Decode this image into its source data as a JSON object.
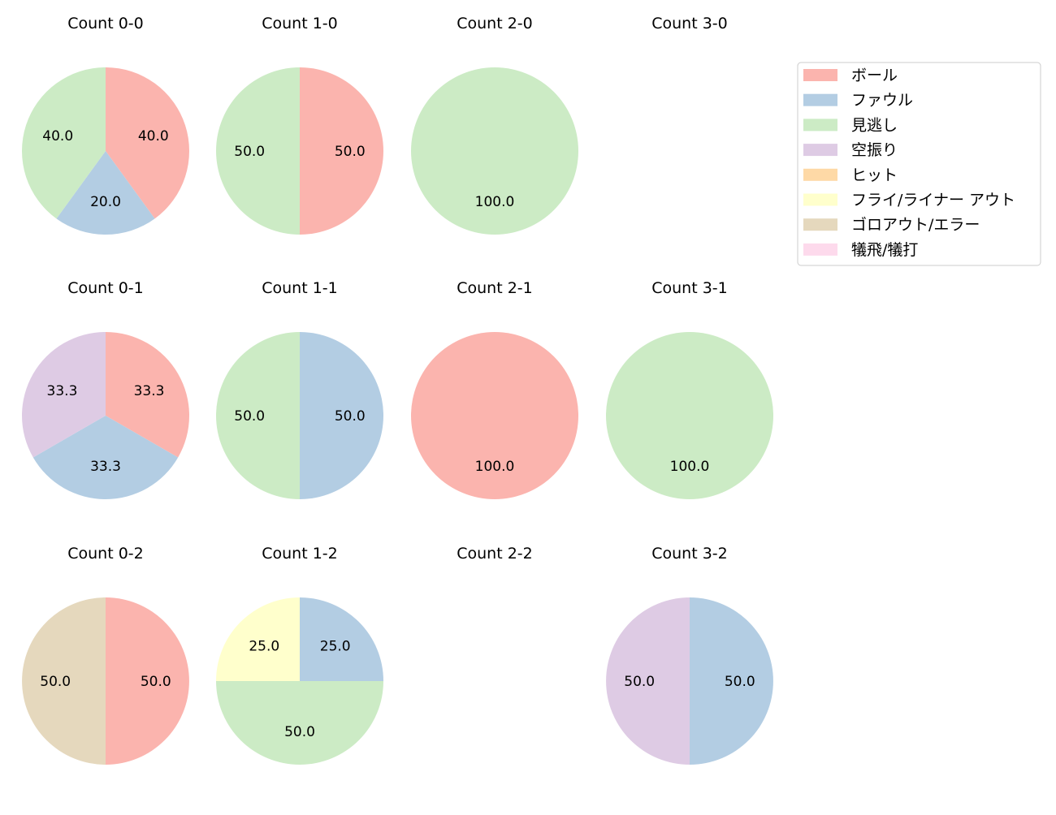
{
  "chart_data": {
    "type": "pie",
    "legend_position": "top-right",
    "legend": [
      "ボール",
      "ファウル",
      "見逃し",
      "空振り",
      "ヒット",
      "フライ/ライナー アウト",
      "ゴロアウト/エラー",
      "犠飛/犠打"
    ],
    "colors": [
      "#fbb4ae",
      "#b3cde3",
      "#ccebc5",
      "#decbe4",
      "#fed9a6",
      "#ffffcc",
      "#e5d8bd",
      "#fddaec"
    ],
    "charts": [
      {
        "title": "Count 0-0",
        "values": [
          40,
          20,
          40,
          0,
          0,
          0,
          0,
          0
        ]
      },
      {
        "title": "Count 1-0",
        "values": [
          50,
          0,
          50,
          0,
          0,
          0,
          0,
          0
        ]
      },
      {
        "title": "Count 2-0",
        "values": [
          0,
          0,
          100,
          0,
          0,
          0,
          0,
          0
        ]
      },
      {
        "title": "Count 3-0",
        "values": [
          0,
          0,
          0,
          0,
          0,
          0,
          0,
          0
        ]
      },
      {
        "title": "Count 0-1",
        "values": [
          33.3,
          33.3,
          0,
          33.3,
          0,
          0,
          0,
          0
        ]
      },
      {
        "title": "Count 1-1",
        "values": [
          0,
          50,
          50,
          0,
          0,
          0,
          0,
          0
        ]
      },
      {
        "title": "Count 2-1",
        "values": [
          100,
          0,
          0,
          0,
          0,
          0,
          0,
          0
        ]
      },
      {
        "title": "Count 3-1",
        "values": [
          0,
          0,
          100,
          0,
          0,
          0,
          0,
          0
        ]
      },
      {
        "title": "Count 0-2",
        "values": [
          50,
          0,
          0,
          0,
          0,
          0,
          50,
          0
        ]
      },
      {
        "title": "Count 1-2",
        "values": [
          0,
          25,
          50,
          0,
          0,
          25,
          0,
          0
        ]
      },
      {
        "title": "Count 2-2",
        "values": [
          0,
          0,
          0,
          0,
          0,
          0,
          0,
          0
        ]
      },
      {
        "title": "Count 3-2",
        "values": [
          0,
          50,
          0,
          50,
          0,
          0,
          0,
          0
        ]
      }
    ]
  }
}
